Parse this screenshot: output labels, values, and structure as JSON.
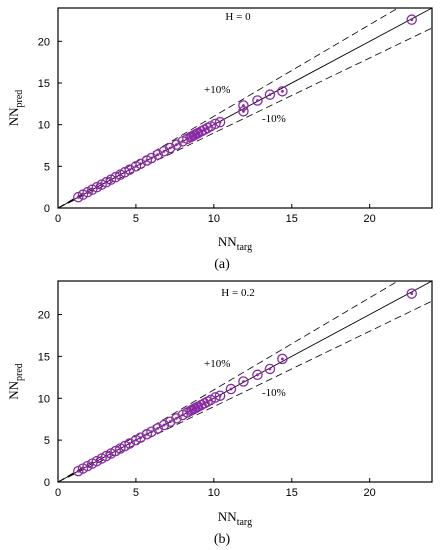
{
  "chart_data": [
    {
      "type": "scatter",
      "panel_label": "(a)",
      "annotation": "H = 0",
      "band_labels": {
        "upper": "+10%",
        "lower": "-10%"
      },
      "xlabel": {
        "main": "NN",
        "sub": "targ"
      },
      "ylabel": {
        "main": "NN",
        "sub": "pred"
      },
      "xlim": [
        0,
        24
      ],
      "ylim": [
        0,
        24
      ],
      "xticks": [
        0,
        5,
        10,
        15,
        20
      ],
      "yticks": [
        0,
        5,
        10,
        15,
        20
      ],
      "grid": false,
      "reference_lines": [
        {
          "name": "",
          "slope": 1.0,
          "style": "solid"
        },
        {
          "name": "",
          "slope": 1.1,
          "style": "dashed"
        },
        {
          "name": "",
          "slope": 0.9,
          "style": "dashed"
        }
      ],
      "marker_color": "#8a2aa3",
      "x": [
        1.3,
        1.6,
        1.9,
        2.2,
        2.5,
        2.8,
        3.1,
        3.4,
        3.7,
        4.0,
        4.3,
        4.6,
        5.0,
        5.3,
        5.7,
        6.0,
        6.4,
        6.8,
        7.2,
        7.6,
        8.0,
        8.3,
        8.5,
        8.6,
        8.7,
        8.8,
        8.9,
        9.0,
        9.2,
        9.4,
        9.6,
        9.8,
        10.1,
        10.4,
        11.9,
        11.9,
        12.8,
        13.6,
        14.4,
        22.7
      ],
      "y": [
        1.3,
        1.6,
        1.9,
        2.2,
        2.5,
        2.8,
        3.1,
        3.4,
        3.7,
        4.0,
        4.3,
        4.6,
        5.0,
        5.3,
        5.7,
        6.0,
        6.4,
        6.8,
        7.2,
        7.6,
        8.0,
        8.3,
        8.5,
        8.6,
        8.7,
        8.8,
        8.9,
        9.0,
        9.2,
        9.4,
        9.6,
        9.8,
        10.1,
        10.3,
        11.6,
        12.3,
        12.9,
        13.6,
        14.0,
        22.6
      ]
    },
    {
      "type": "scatter",
      "panel_label": "(b)",
      "annotation": "H = 0.2",
      "band_labels": {
        "upper": "+10%",
        "lower": "-10%"
      },
      "xlabel": {
        "main": "NN",
        "sub": "targ"
      },
      "ylabel": {
        "main": "NN",
        "sub": "pred"
      },
      "xlim": [
        0,
        24
      ],
      "ylim": [
        0,
        24
      ],
      "xticks": [
        0,
        5,
        10,
        15,
        20
      ],
      "yticks": [
        0,
        5,
        10,
        15,
        20
      ],
      "grid": false,
      "reference_lines": [
        {
          "name": "",
          "slope": 1.0,
          "style": "solid"
        },
        {
          "name": "",
          "slope": 1.1,
          "style": "dashed"
        },
        {
          "name": "",
          "slope": 0.9,
          "style": "dashed"
        }
      ],
      "marker_color": "#8a2aa3",
      "x": [
        1.3,
        1.6,
        1.9,
        2.2,
        2.5,
        2.8,
        3.1,
        3.4,
        3.7,
        4.0,
        4.3,
        4.6,
        5.0,
        5.3,
        5.7,
        6.0,
        6.4,
        6.8,
        7.2,
        7.6,
        8.0,
        8.3,
        8.5,
        8.6,
        8.7,
        8.8,
        8.9,
        9.0,
        9.2,
        9.4,
        9.6,
        9.8,
        10.1,
        10.4,
        11.1,
        11.9,
        12.8,
        13.6,
        14.4,
        22.7
      ],
      "y": [
        1.3,
        1.6,
        1.9,
        2.2,
        2.5,
        2.8,
        3.1,
        3.4,
        3.7,
        4.0,
        4.3,
        4.6,
        5.0,
        5.3,
        5.7,
        6.0,
        6.4,
        6.8,
        7.2,
        7.6,
        8.0,
        8.3,
        8.5,
        8.6,
        8.7,
        8.8,
        8.9,
        9.0,
        9.2,
        9.4,
        9.6,
        9.8,
        10.1,
        10.3,
        11.1,
        12.0,
        12.8,
        13.5,
        14.7,
        22.5
      ]
    }
  ]
}
